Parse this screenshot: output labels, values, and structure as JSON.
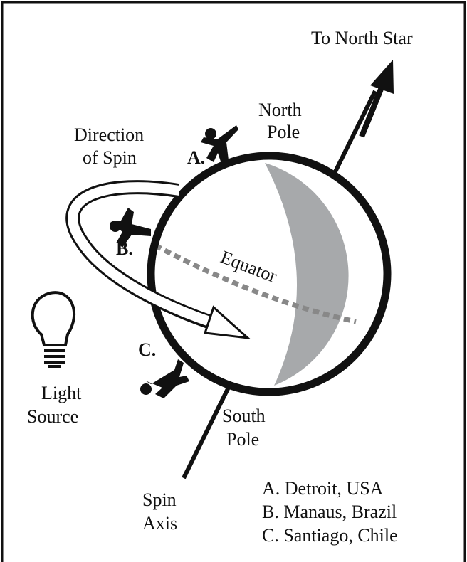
{
  "labels": {
    "to_north_star": "To North Star",
    "north_pole": [
      "North",
      "Pole"
    ],
    "direction_of_spin": [
      "Direction",
      "of Spin"
    ],
    "marker_a": "A.",
    "marker_b": "B.",
    "marker_c": "C.",
    "equator": "Equator",
    "light_source": [
      "Light",
      "Source"
    ],
    "south_pole": [
      "South",
      "Pole"
    ],
    "spin_axis": [
      "Spin",
      "Axis"
    ]
  },
  "legend": [
    "A. Detroit, USA",
    "B. Manaus, Brazil",
    "C. Santiago, Chile"
  ]
}
